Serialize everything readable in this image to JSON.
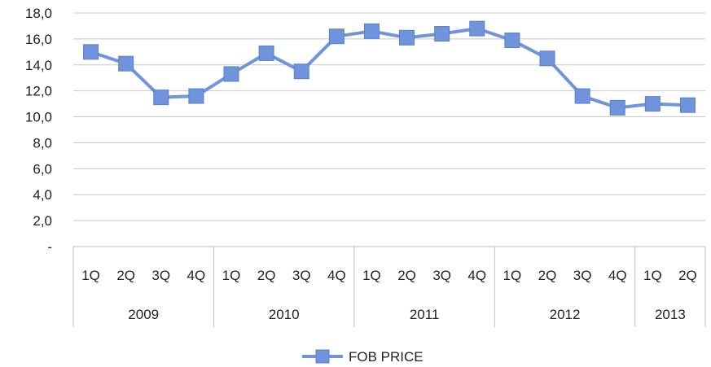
{
  "chart_data": {
    "type": "line",
    "title": "",
    "xlabel": "",
    "ylabel": "",
    "ylim": [
      0,
      18
    ],
    "y_ticks": [
      "-",
      "2,0",
      "4,0",
      "6,0",
      "8,0",
      "10,0",
      "12,0",
      "14,0",
      "16,0",
      "18,0"
    ],
    "grid": "horizontal",
    "legend_position": "bottom",
    "groups": [
      {
        "label": "2009",
        "quarters": [
          "1Q",
          "2Q",
          "3Q",
          "4Q"
        ]
      },
      {
        "label": "2010",
        "quarters": [
          "1Q",
          "2Q",
          "3Q",
          "4Q"
        ]
      },
      {
        "label": "2011",
        "quarters": [
          "1Q",
          "2Q",
          "3Q",
          "4Q"
        ]
      },
      {
        "label": "2012",
        "quarters": [
          "1Q",
          "2Q",
          "3Q",
          "4Q"
        ]
      },
      {
        "label": "2013",
        "quarters": [
          "1Q",
          "2Q"
        ]
      }
    ],
    "series": [
      {
        "name": "FOB PRICE",
        "color": "#6f94dc",
        "marker": "square",
        "values": [
          15.0,
          14.1,
          11.5,
          11.6,
          13.3,
          14.9,
          13.5,
          16.2,
          16.6,
          16.1,
          16.4,
          16.8,
          15.9,
          14.5,
          11.6,
          10.7,
          11.0,
          10.9
        ]
      }
    ]
  }
}
